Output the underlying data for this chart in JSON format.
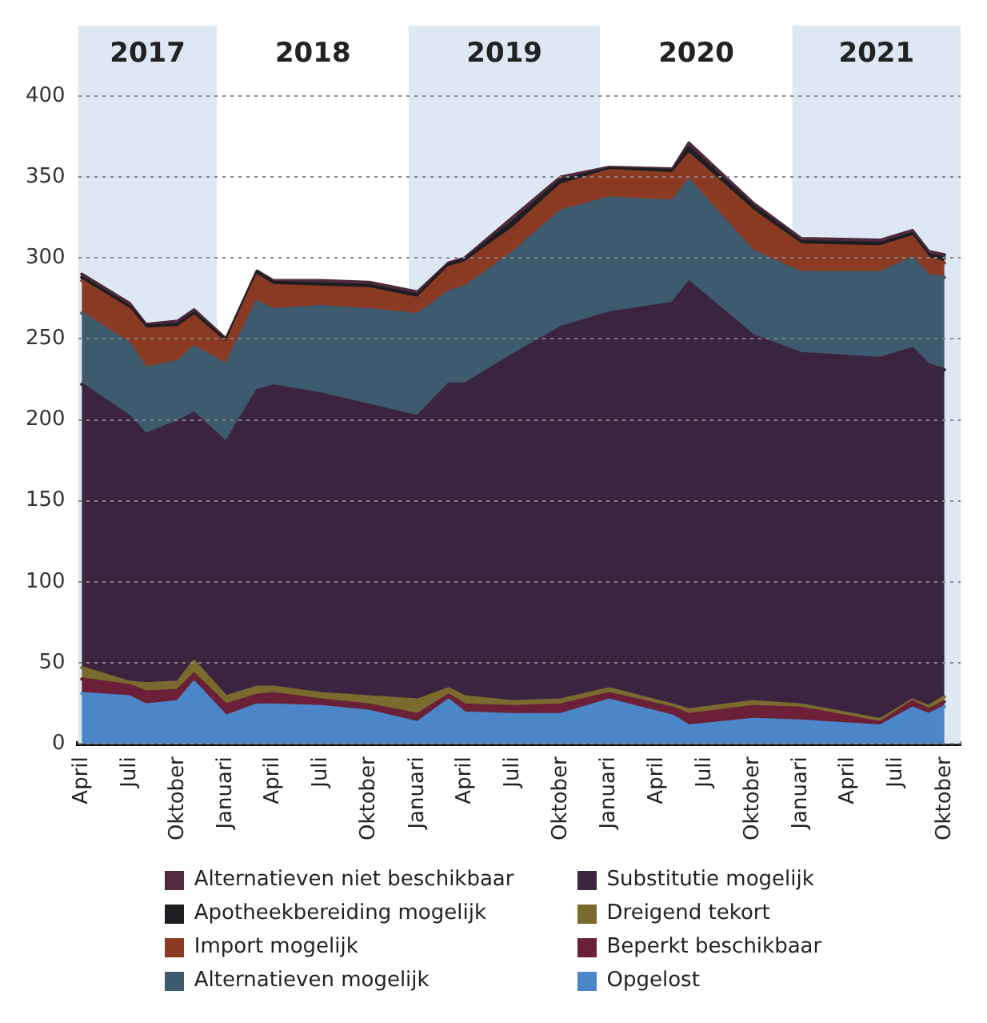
{
  "chart_data": {
    "type": "area",
    "stacked": true,
    "x": [
      "2017-04",
      "2017-07",
      "2017-08",
      "2017-10",
      "2017-11",
      "2018-01",
      "2018-03",
      "2018-04",
      "2018-07",
      "2018-10",
      "2019-01",
      "2019-03",
      "2019-04",
      "2019-07",
      "2019-10",
      "2020-01",
      "2020-05",
      "2020-06",
      "2020-10",
      "2021-01",
      "2021-06",
      "2021-08",
      "2021-09",
      "2021-10"
    ],
    "series": [
      {
        "name": "Opgelost",
        "color": "#4a86c8",
        "values": [
          31,
          29,
          24,
          26,
          38,
          17,
          24,
          24,
          23,
          20,
          13,
          27,
          19,
          18,
          18,
          27,
          17,
          11,
          15,
          14,
          11,
          22,
          18,
          23
        ]
      },
      {
        "name": "Beperkt beschikbaar",
        "color": "#6b2038",
        "values": [
          9,
          7,
          8,
          7,
          5,
          7,
          6,
          7,
          4,
          4,
          5,
          3,
          5,
          5,
          6,
          4,
          5,
          7,
          8,
          8,
          2,
          4,
          3,
          3
        ]
      },
      {
        "name": "Dreigend tekort",
        "color": "#7a6a2e",
        "values": [
          7,
          2,
          5,
          5,
          8,
          5,
          5,
          4,
          4,
          5,
          9,
          4,
          5,
          3,
          3,
          3,
          2,
          3,
          3,
          2,
          2,
          1,
          2,
          3
        ]
      },
      {
        "name": "Substitutie mogelijk",
        "color": "#3a2440",
        "values": [
          175,
          164,
          154,
          161,
          153,
          157,
          183,
          186,
          185,
          180,
          175,
          188,
          193,
          214,
          230,
          232,
          248,
          264,
          226,
          217,
          223,
          217,
          211,
          202
        ]
      },
      {
        "name": "Alternatieven mogelijk",
        "color": "#3d5a6e",
        "values": [
          44,
          45,
          41,
          37,
          41,
          48,
          55,
          47,
          54,
          59,
          63,
          57,
          60,
          63,
          72,
          71,
          63,
          63,
          52,
          50,
          53,
          56,
          55,
          57
        ]
      },
      {
        "name": "Import mogelijk",
        "color": "#8a3a22",
        "values": [
          20,
          21,
          24,
          21,
          19,
          13,
          16,
          15,
          12,
          13,
          10,
          15,
          15,
          15,
          16,
          17,
          17,
          16,
          25,
          17,
          16,
          13,
          11,
          9
        ]
      },
      {
        "name": "Apotheekbereiding mogelijk",
        "color": "#1e1e22",
        "values": [
          2,
          2,
          2,
          2,
          2,
          2,
          2,
          2,
          2,
          2,
          2,
          2,
          2,
          4,
          3,
          1,
          2,
          4,
          3,
          2,
          2,
          2,
          2,
          3
        ]
      },
      {
        "name": "Alternatieven niet beschikbaar",
        "color": "#4e2a3c",
        "values": [
          2,
          2,
          1,
          2,
          2,
          1,
          1,
          1,
          2,
          2,
          2,
          1,
          1,
          3,
          2,
          1,
          1,
          3,
          2,
          2,
          2,
          2,
          2,
          2
        ]
      }
    ],
    "xlim": [
      "2017-03-25",
      "2021-11"
    ],
    "xticks": [
      {
        "value": "2017-04",
        "label": "April"
      },
      {
        "value": "2017-07",
        "label": "Juli"
      },
      {
        "value": "2017-10",
        "label": "Oktober"
      },
      {
        "value": "2018-01",
        "label": "Januari"
      },
      {
        "value": "2018-04",
        "label": "April"
      },
      {
        "value": "2018-07",
        "label": "Juli"
      },
      {
        "value": "2018-10",
        "label": "Oktober"
      },
      {
        "value": "2019-01",
        "label": "Januari"
      },
      {
        "value": "2019-04",
        "label": "April"
      },
      {
        "value": "2019-07",
        "label": "Juli"
      },
      {
        "value": "2019-10",
        "label": "Oktober"
      },
      {
        "value": "2020-01",
        "label": "Januari"
      },
      {
        "value": "2020-04",
        "label": "April"
      },
      {
        "value": "2020-07",
        "label": "Juli"
      },
      {
        "value": "2020-10",
        "label": "Oktober"
      },
      {
        "value": "2021-01",
        "label": "Januari"
      },
      {
        "value": "2021-04",
        "label": "April"
      },
      {
        "value": "2021-07",
        "label": "Juli"
      },
      {
        "value": "2021-10",
        "label": "Oktober"
      }
    ],
    "ylim": [
      0,
      400
    ],
    "yticks": [
      0,
      50,
      100,
      150,
      200,
      250,
      300,
      350,
      400
    ],
    "grid": "y",
    "bands": [
      {
        "axis": "x",
        "from": "2017-03-25",
        "to": "2017-12-15",
        "label": "2017",
        "color": "#dde8f4"
      },
      {
        "axis": "x",
        "from": "2017-12-15",
        "to": "2018-12-15",
        "label": "2018",
        "color": "#ffffff"
      },
      {
        "axis": "x",
        "from": "2018-12-15",
        "to": "2019-12-15",
        "label": "2019",
        "color": "#dde8f4"
      },
      {
        "axis": "x",
        "from": "2019-12-15",
        "to": "2020-12-15",
        "label": "2020",
        "color": "#ffffff"
      },
      {
        "axis": "x",
        "from": "2020-12-15",
        "to": "2021-11",
        "label": "2021",
        "color": "#dde8f4"
      }
    ],
    "legend": "bottom"
  }
}
